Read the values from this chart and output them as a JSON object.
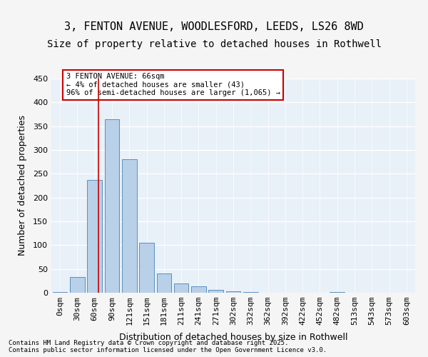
{
  "title_line1": "3, FENTON AVENUE, WOODLESFORD, LEEDS, LS26 8WD",
  "title_line2": "Size of property relative to detached houses in Rothwell",
  "xlabel": "Distribution of detached houses by size in Rothwell",
  "ylabel": "Number of detached properties",
  "bar_color": "#b8d0e8",
  "bar_edge_color": "#5a8fc0",
  "background_color": "#e8f0f8",
  "grid_color": "#ffffff",
  "categories": [
    "0sqm",
    "30sqm",
    "60sqm",
    "90sqm",
    "121sqm",
    "151sqm",
    "181sqm",
    "211sqm",
    "241sqm",
    "271sqm",
    "302sqm",
    "332sqm",
    "362sqm",
    "392sqm",
    "422sqm",
    "452sqm",
    "482sqm",
    "513sqm",
    "543sqm",
    "573sqm",
    "603sqm"
  ],
  "values": [
    2,
    33,
    237,
    365,
    280,
    105,
    40,
    20,
    14,
    6,
    3,
    1,
    0,
    0,
    0,
    0,
    1,
    0,
    0,
    0,
    0
  ],
  "ylim": [
    0,
    450
  ],
  "yticks": [
    0,
    50,
    100,
    150,
    200,
    250,
    300,
    350,
    400,
    450
  ],
  "property_line_x": 1.8,
  "annotation_text": "3 FENTON AVENUE: 66sqm\n← 4% of detached houses are smaller (43)\n96% of semi-detached houses are larger (1,065) →",
  "annotation_box_color": "#ffffff",
  "annotation_box_edge_color": "#cc0000",
  "footnote": "Contains HM Land Registry data © Crown copyright and database right 2025.\nContains public sector information licensed under the Open Government Licence v3.0.",
  "title_fontsize": 11,
  "subtitle_fontsize": 10,
  "tick_fontsize": 8,
  "label_fontsize": 9
}
